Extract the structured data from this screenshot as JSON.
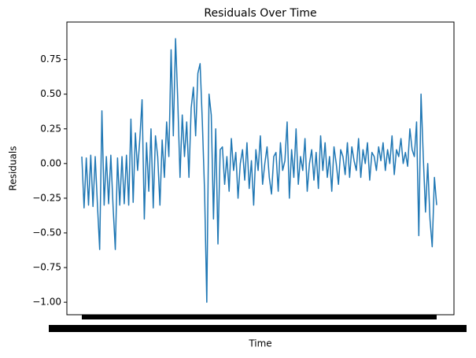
{
  "chart_data": {
    "type": "line",
    "title": "Residuals Over Time",
    "x_label": "Time",
    "y_label": "Residuals",
    "categories": [
      null,
      null,
      null,
      null,
      null,
      null,
      null,
      null,
      null,
      null,
      null,
      null,
      null,
      null,
      null,
      null,
      null,
      null,
      null,
      null,
      null,
      null,
      null,
      null,
      null,
      null,
      null,
      null,
      null,
      null,
      null,
      null,
      null,
      null,
      null,
      null,
      null,
      null,
      null,
      null,
      null,
      null,
      null,
      null,
      null,
      null,
      null,
      null,
      null,
      null,
      null,
      null,
      null,
      null,
      null,
      null,
      null,
      null,
      null,
      null,
      null,
      null,
      null,
      null,
      null,
      null,
      null,
      null,
      null,
      null,
      null,
      null,
      null,
      null,
      null,
      null,
      null,
      null,
      null,
      null,
      null,
      null,
      null,
      null,
      null,
      null,
      null,
      null,
      null,
      null,
      null,
      null,
      null,
      null,
      null,
      null,
      null,
      null,
      null,
      null,
      null,
      null,
      null,
      null,
      null,
      null,
      null,
      null,
      null,
      null,
      null,
      null,
      null,
      null,
      null,
      null,
      null,
      null,
      null,
      null,
      null,
      null,
      null,
      null,
      null,
      null,
      null,
      null,
      null,
      null,
      null,
      null,
      null,
      null,
      null,
      null,
      null,
      null,
      null,
      null,
      null,
      null,
      null,
      null,
      null,
      null,
      null,
      null,
      null,
      null,
      null,
      null,
      null,
      null,
      null,
      null,
      null,
      null,
      null,
      null
    ],
    "series": [
      {
        "name": "Residuals",
        "color": "#1f77b4",
        "values": [
          0.05,
          -0.32,
          0.04,
          -0.3,
          0.06,
          -0.31,
          0.05,
          -0.3,
          -0.62,
          0.38,
          -0.3,
          0.05,
          -0.29,
          0.06,
          -0.31,
          -0.62,
          0.04,
          -0.3,
          0.05,
          -0.29,
          0.06,
          -0.3,
          0.32,
          -0.28,
          0.22,
          -0.05,
          0.18,
          0.46,
          -0.4,
          0.15,
          -0.2,
          0.25,
          -0.32,
          0.2,
          0.05,
          -0.3,
          0.17,
          -0.1,
          0.3,
          0.05,
          0.82,
          0.2,
          0.9,
          0.45,
          -0.1,
          0.35,
          0.05,
          0.3,
          -0.1,
          0.4,
          0.55,
          0.2,
          0.65,
          0.72,
          0.3,
          -0.2,
          -1.0,
          0.5,
          0.35,
          -0.4,
          0.25,
          -0.58,
          0.1,
          0.12,
          -0.15,
          0.05,
          -0.2,
          0.18,
          -0.05,
          0.08,
          -0.25,
          0.0,
          0.1,
          -0.12,
          0.15,
          -0.18,
          0.02,
          -0.3,
          0.1,
          -0.05,
          0.2,
          -0.15,
          0.0,
          0.12,
          -0.1,
          -0.22,
          0.05,
          0.08,
          -0.2,
          0.15,
          -0.05,
          0.02,
          0.3,
          -0.25,
          0.1,
          -0.1,
          0.25,
          -0.15,
          0.05,
          -0.05,
          0.18,
          -0.2,
          0.0,
          0.1,
          -0.12,
          0.08,
          -0.18,
          0.2,
          -0.05,
          0.15,
          -0.1,
          0.05,
          -0.2,
          0.12,
          0.0,
          -0.15,
          0.1,
          0.05,
          -0.08,
          0.15,
          -0.1,
          0.12,
          0.02,
          -0.05,
          0.18,
          -0.1,
          0.1,
          0.0,
          0.15,
          -0.12,
          0.08,
          0.05,
          -0.05,
          0.12,
          0.02,
          0.15,
          -0.05,
          0.1,
          0.0,
          0.2,
          -0.08,
          0.1,
          0.05,
          0.18,
          0.0,
          0.08,
          -0.02,
          0.25,
          0.1,
          0.05,
          0.3,
          -0.52,
          0.5,
          0.05,
          -0.35,
          0.0,
          -0.4,
          -0.6,
          -0.1,
          -0.3
        ]
      }
    ],
    "ylim": [
      -1.09,
      1.02
    ],
    "yticks": [
      {
        "value": -1,
        "label": "−1.00"
      },
      {
        "value": -0.75,
        "label": "−0.75"
      },
      {
        "value": -0.5,
        "label": "−0.50"
      },
      {
        "value": -0.25,
        "label": "−0.25"
      },
      {
        "value": 0,
        "label": "0.00"
      },
      0.25,
      {
        "value": 0.5,
        "label": "0.50"
      },
      0.75
    ],
    "grid": false
  }
}
